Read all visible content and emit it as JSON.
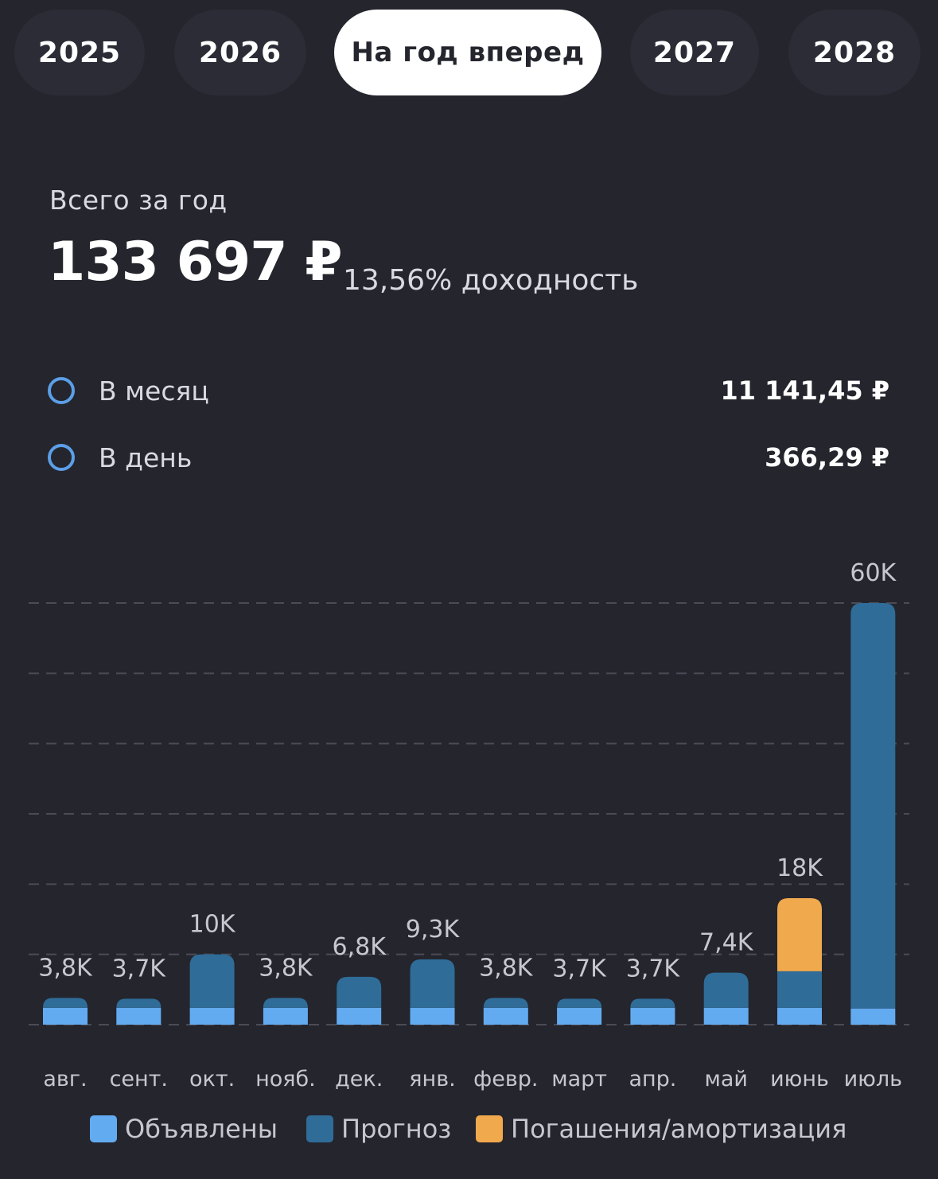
{
  "tabs": [
    {
      "label": "2025",
      "active": false
    },
    {
      "label": "2026",
      "active": false
    },
    {
      "label": "На год вперед",
      "active": true
    },
    {
      "label": "2027",
      "active": false
    },
    {
      "label": "2028",
      "active": false
    }
  ],
  "summary": {
    "caption": "Всего за год",
    "total": "133 697 ₽",
    "yield": "13,56% доходность"
  },
  "rows": {
    "month": {
      "label": "В месяц",
      "value": "11 141,45 ₽"
    },
    "day": {
      "label": "В день",
      "value": "366,29 ₽"
    }
  },
  "legend": [
    {
      "label": "Объявлены",
      "color": "#63abf0"
    },
    {
      "label": "Прогноз",
      "color": "#2f6c98"
    },
    {
      "label": "Погашения/амортизация",
      "color": "#f1a94e"
    }
  ],
  "colors": {
    "accent": "#5b9fe7",
    "declared": "#63abf0",
    "forecast": "#2f6c98",
    "redemption": "#f1a94e",
    "background": "#24252d",
    "tab_background": "#2b2c35"
  },
  "chart_data": {
    "type": "bar",
    "stacked": true,
    "categories": [
      "авг.",
      "сент.",
      "окт.",
      "нояб.",
      "дек.",
      "янв.",
      "февр.",
      "март",
      "апр.",
      "май",
      "июнь",
      "июль"
    ],
    "series": [
      {
        "name": "Объявлены",
        "color": "#63abf0",
        "values": [
          2400,
          2400,
          2400,
          2400,
          2400,
          2400,
          2400,
          2400,
          2400,
          2400,
          2400,
          2300
        ]
      },
      {
        "name": "Прогноз",
        "color": "#2f6c98",
        "values": [
          1400,
          1300,
          7600,
          1400,
          4400,
          6900,
          1400,
          1300,
          1300,
          5000,
          5200,
          57700
        ]
      },
      {
        "name": "Погашения/амортизация",
        "color": "#f1a94e",
        "values": [
          0,
          0,
          0,
          0,
          0,
          0,
          0,
          0,
          0,
          0,
          10400,
          0
        ]
      }
    ],
    "data_labels": [
      "3,8K",
      "3,7K",
      "10K",
      "3,8K",
      "6,8K",
      "9,3K",
      "3,8K",
      "3,7K",
      "3,7K",
      "7,4K",
      "18K",
      "60K"
    ],
    "ylim": [
      0,
      60000
    ],
    "grid": true,
    "legend": "bottom"
  }
}
